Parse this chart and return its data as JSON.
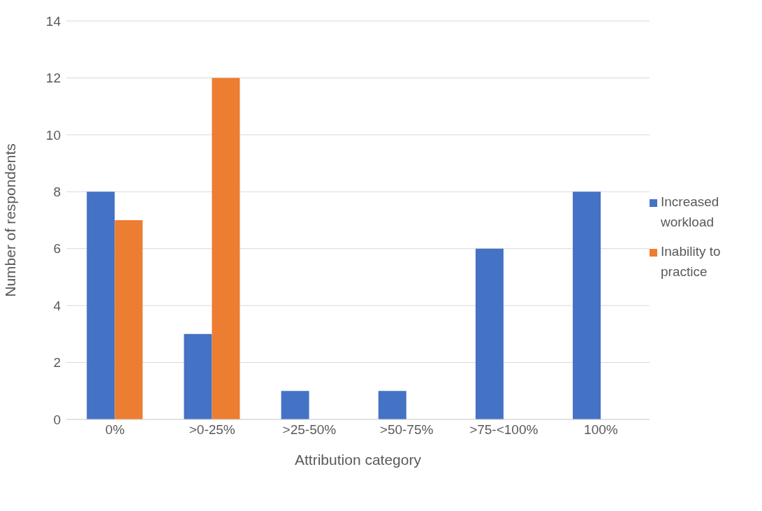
{
  "chart_data": {
    "type": "bar",
    "xlabel": "Attribution category",
    "ylabel": "Number of respondents",
    "categories": [
      "0%",
      ">0-25%",
      ">25-50%",
      ">50-75%",
      ">75-<100%",
      "100%"
    ],
    "series": [
      {
        "name": "Increased workload",
        "color": "#4472c4",
        "values": [
          8,
          3,
          1,
          1,
          6,
          8
        ]
      },
      {
        "name": "Inability to practice",
        "color": "#ed7d31",
        "values": [
          7,
          12,
          0,
          0,
          0,
          0
        ]
      }
    ],
    "ylim": [
      0,
      14
    ],
    "yticks": [
      0,
      2,
      4,
      6,
      8,
      10,
      12,
      14
    ],
    "grid": "y",
    "legend": "right"
  }
}
